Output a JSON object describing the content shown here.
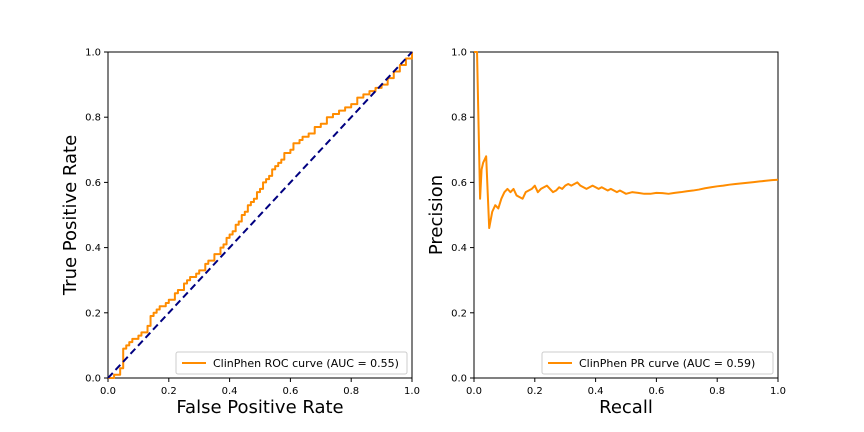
{
  "chart_data": [
    {
      "type": "line",
      "title": "",
      "xlabel": "False Positive Rate",
      "ylabel": "True Positive Rate",
      "xlim": [
        0.0,
        1.0
      ],
      "ylim": [
        0.0,
        1.0
      ],
      "xticks": [
        "0.0",
        "0.2",
        "0.4",
        "0.6",
        "0.8",
        "1.0"
      ],
      "yticks": [
        "0.0",
        "0.2",
        "0.4",
        "0.6",
        "0.8",
        "1.0"
      ],
      "grid": false,
      "legend_position": "lower-right",
      "series": [
        {
          "name": "ClinPhen ROC curve (AUC = 0.55)",
          "color": "#ff8c00",
          "style": "step",
          "x": [
            0,
            0.02,
            0.04,
            0.05,
            0.05,
            0.06,
            0.07,
            0.08,
            0.1,
            0.11,
            0.13,
            0.14,
            0.15,
            0.16,
            0.17,
            0.19,
            0.2,
            0.22,
            0.23,
            0.25,
            0.26,
            0.27,
            0.29,
            0.3,
            0.32,
            0.33,
            0.35,
            0.37,
            0.38,
            0.39,
            0.4,
            0.41,
            0.42,
            0.43,
            0.44,
            0.45,
            0.46,
            0.47,
            0.48,
            0.49,
            0.5,
            0.51,
            0.52,
            0.53,
            0.54,
            0.55,
            0.56,
            0.57,
            0.58,
            0.6,
            0.61,
            0.63,
            0.64,
            0.66,
            0.68,
            0.7,
            0.72,
            0.74,
            0.76,
            0.78,
            0.8,
            0.82,
            0.84,
            0.86,
            0.88,
            0.9,
            0.92,
            0.94,
            0.96,
            0.98,
            1.0
          ],
          "y": [
            0,
            0.01,
            0.03,
            0.05,
            0.09,
            0.1,
            0.11,
            0.12,
            0.13,
            0.14,
            0.16,
            0.19,
            0.2,
            0.21,
            0.22,
            0.23,
            0.24,
            0.26,
            0.27,
            0.29,
            0.3,
            0.31,
            0.32,
            0.33,
            0.35,
            0.36,
            0.38,
            0.4,
            0.41,
            0.43,
            0.44,
            0.45,
            0.47,
            0.48,
            0.5,
            0.51,
            0.53,
            0.54,
            0.55,
            0.57,
            0.58,
            0.6,
            0.61,
            0.62,
            0.64,
            0.65,
            0.66,
            0.67,
            0.69,
            0.7,
            0.72,
            0.73,
            0.74,
            0.75,
            0.77,
            0.78,
            0.8,
            0.81,
            0.82,
            0.83,
            0.84,
            0.86,
            0.87,
            0.88,
            0.89,
            0.9,
            0.92,
            0.94,
            0.96,
            0.98,
            1.0
          ]
        },
        {
          "name": "",
          "color": "#000080",
          "style": "dashed",
          "x": [
            0,
            1
          ],
          "y": [
            0,
            1
          ]
        }
      ]
    },
    {
      "type": "line",
      "title": "",
      "xlabel": "Recall",
      "ylabel": "Precision",
      "xlim": [
        0.0,
        1.0
      ],
      "ylim": [
        0.0,
        1.0
      ],
      "xticks": [
        "0.0",
        "0.2",
        "0.4",
        "0.6",
        "0.8",
        "1.0"
      ],
      "yticks": [
        "0.0",
        "0.2",
        "0.4",
        "0.6",
        "0.8",
        "1.0"
      ],
      "grid": false,
      "legend_position": "lower-right",
      "series": [
        {
          "name": "ClinPhen PR curve (AUC = 0.59)",
          "color": "#ff8c00",
          "style": "solid",
          "x": [
            0.0,
            0.01,
            0.02,
            0.025,
            0.03,
            0.04,
            0.05,
            0.06,
            0.07,
            0.08,
            0.09,
            0.1,
            0.11,
            0.12,
            0.13,
            0.14,
            0.15,
            0.16,
            0.17,
            0.18,
            0.19,
            0.2,
            0.21,
            0.22,
            0.23,
            0.24,
            0.25,
            0.26,
            0.27,
            0.28,
            0.29,
            0.3,
            0.31,
            0.32,
            0.33,
            0.34,
            0.35,
            0.36,
            0.37,
            0.38,
            0.39,
            0.4,
            0.41,
            0.42,
            0.43,
            0.44,
            0.45,
            0.46,
            0.47,
            0.48,
            0.49,
            0.5,
            0.52,
            0.54,
            0.56,
            0.58,
            0.6,
            0.62,
            0.64,
            0.66,
            0.68,
            0.7,
            0.72,
            0.74,
            0.76,
            0.78,
            0.8,
            0.82,
            0.84,
            0.86,
            0.88,
            0.9,
            0.92,
            0.94,
            0.96,
            0.98,
            1.0
          ],
          "y": [
            1.0,
            1.0,
            0.55,
            0.64,
            0.66,
            0.68,
            0.46,
            0.51,
            0.53,
            0.52,
            0.55,
            0.57,
            0.58,
            0.57,
            0.58,
            0.56,
            0.555,
            0.55,
            0.57,
            0.575,
            0.58,
            0.59,
            0.57,
            0.58,
            0.585,
            0.59,
            0.58,
            0.57,
            0.575,
            0.585,
            0.58,
            0.59,
            0.595,
            0.59,
            0.595,
            0.6,
            0.59,
            0.585,
            0.58,
            0.585,
            0.59,
            0.585,
            0.58,
            0.585,
            0.58,
            0.575,
            0.58,
            0.575,
            0.57,
            0.575,
            0.57,
            0.565,
            0.57,
            0.568,
            0.565,
            0.565,
            0.568,
            0.567,
            0.565,
            0.568,
            0.57,
            0.573,
            0.575,
            0.578,
            0.582,
            0.585,
            0.588,
            0.59,
            0.593,
            0.595,
            0.597,
            0.599,
            0.601,
            0.603,
            0.605,
            0.607,
            0.608
          ]
        }
      ]
    }
  ]
}
